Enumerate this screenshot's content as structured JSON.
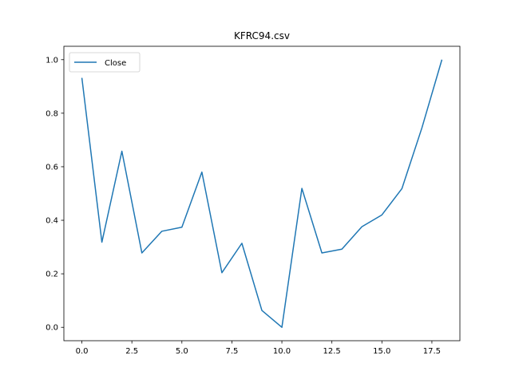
{
  "chart_data": {
    "type": "line",
    "title": "KFRC94.csv",
    "xlabel": "",
    "ylabel": "",
    "xlim": [
      -0.9,
      18.9
    ],
    "ylim": [
      -0.05,
      1.05
    ],
    "x_ticks": [
      0.0,
      2.5,
      5.0,
      7.5,
      10.0,
      12.5,
      15.0,
      17.5
    ],
    "x_tick_labels": [
      "0.0",
      "2.5",
      "5.0",
      "7.5",
      "10.0",
      "12.5",
      "15.0",
      "17.5"
    ],
    "y_ticks": [
      0.0,
      0.2,
      0.4,
      0.6,
      0.8,
      1.0
    ],
    "y_tick_labels": [
      "0.0",
      "0.2",
      "0.4",
      "0.6",
      "0.8",
      "1.0"
    ],
    "grid": false,
    "legend_position": "top-left",
    "series": [
      {
        "name": "Close",
        "color": "#1f77b4",
        "x": [
          0,
          1,
          2,
          3,
          4,
          5,
          6,
          7,
          8,
          9,
          10,
          11,
          12,
          13,
          14,
          15,
          16,
          17,
          18
        ],
        "values": [
          0.932,
          0.318,
          0.658,
          0.278,
          0.359,
          0.374,
          0.58,
          0.204,
          0.314,
          0.063,
          0.0,
          0.519,
          0.278,
          0.292,
          0.376,
          0.42,
          0.518,
          0.745,
          1.0
        ]
      }
    ]
  }
}
